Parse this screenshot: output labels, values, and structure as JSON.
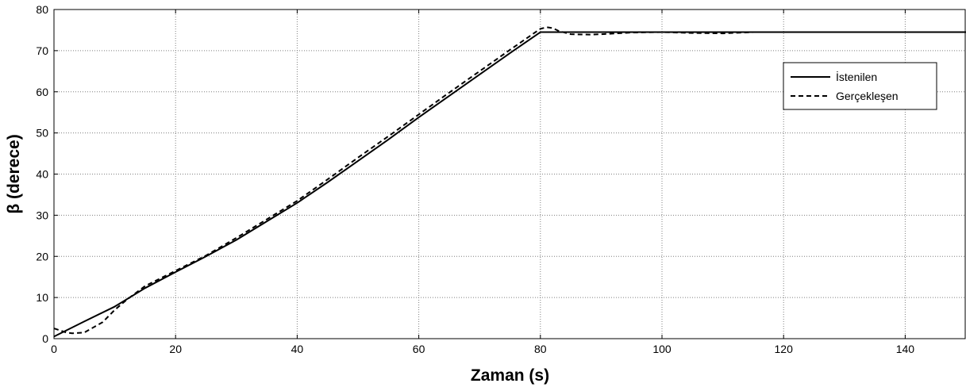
{
  "chart_data": {
    "type": "line",
    "xlabel": "Zaman (s)",
    "ylabel": "β (derece)",
    "xlim": [
      0,
      150
    ],
    "ylim": [
      0,
      80
    ],
    "xticks": [
      0,
      20,
      40,
      60,
      80,
      100,
      120,
      140
    ],
    "yticks": [
      0,
      10,
      20,
      30,
      40,
      50,
      60,
      70,
      80
    ],
    "xtick_labels": [
      "0",
      "20",
      "40",
      "60",
      "80",
      "100",
      "120",
      "140"
    ],
    "ytick_labels": [
      "0",
      "10",
      "20",
      "30",
      "40",
      "50",
      "60",
      "70",
      "80"
    ],
    "grid": true,
    "legend_position": "top-right",
    "series": [
      {
        "name": "İstenilen",
        "style": "solid",
        "color": "#000000",
        "x": [
          0,
          5,
          10,
          15,
          20,
          25,
          30,
          35,
          40,
          45,
          50,
          55,
          60,
          65,
          70,
          75,
          80,
          85,
          90,
          100,
          110,
          120,
          130,
          140,
          150
        ],
        "y": [
          0.5,
          4.2,
          7.8,
          12.3,
          16.2,
          20.0,
          24.0,
          28.5,
          33.0,
          38.0,
          43.2,
          48.4,
          53.8,
          59.0,
          64.2,
          69.4,
          74.5,
          74.5,
          74.5,
          74.5,
          74.5,
          74.5,
          74.5,
          74.5,
          74.5
        ]
      },
      {
        "name": "Gerçekleşen",
        "style": "dashed",
        "color": "#000000",
        "x": [
          0,
          1,
          2,
          3,
          5,
          8,
          10,
          12,
          15,
          20,
          25,
          30,
          35,
          40,
          45,
          50,
          55,
          60,
          65,
          70,
          75,
          79,
          80,
          81,
          82,
          83,
          85,
          88,
          90,
          95,
          100,
          105,
          110,
          115,
          120,
          130,
          140,
          150
        ],
        "y": [
          2.5,
          2.0,
          1.5,
          1.3,
          1.5,
          4.0,
          7.0,
          9.5,
          12.8,
          16.5,
          20.2,
          24.5,
          29.0,
          33.5,
          38.7,
          44.0,
          49.2,
          54.5,
          59.8,
          65.0,
          70.2,
          74.3,
          75.3,
          75.7,
          75.5,
          74.8,
          74.0,
          73.9,
          74.0,
          74.4,
          74.5,
          74.3,
          74.2,
          74.5,
          74.5,
          74.5,
          74.5,
          74.5
        ]
      }
    ]
  }
}
